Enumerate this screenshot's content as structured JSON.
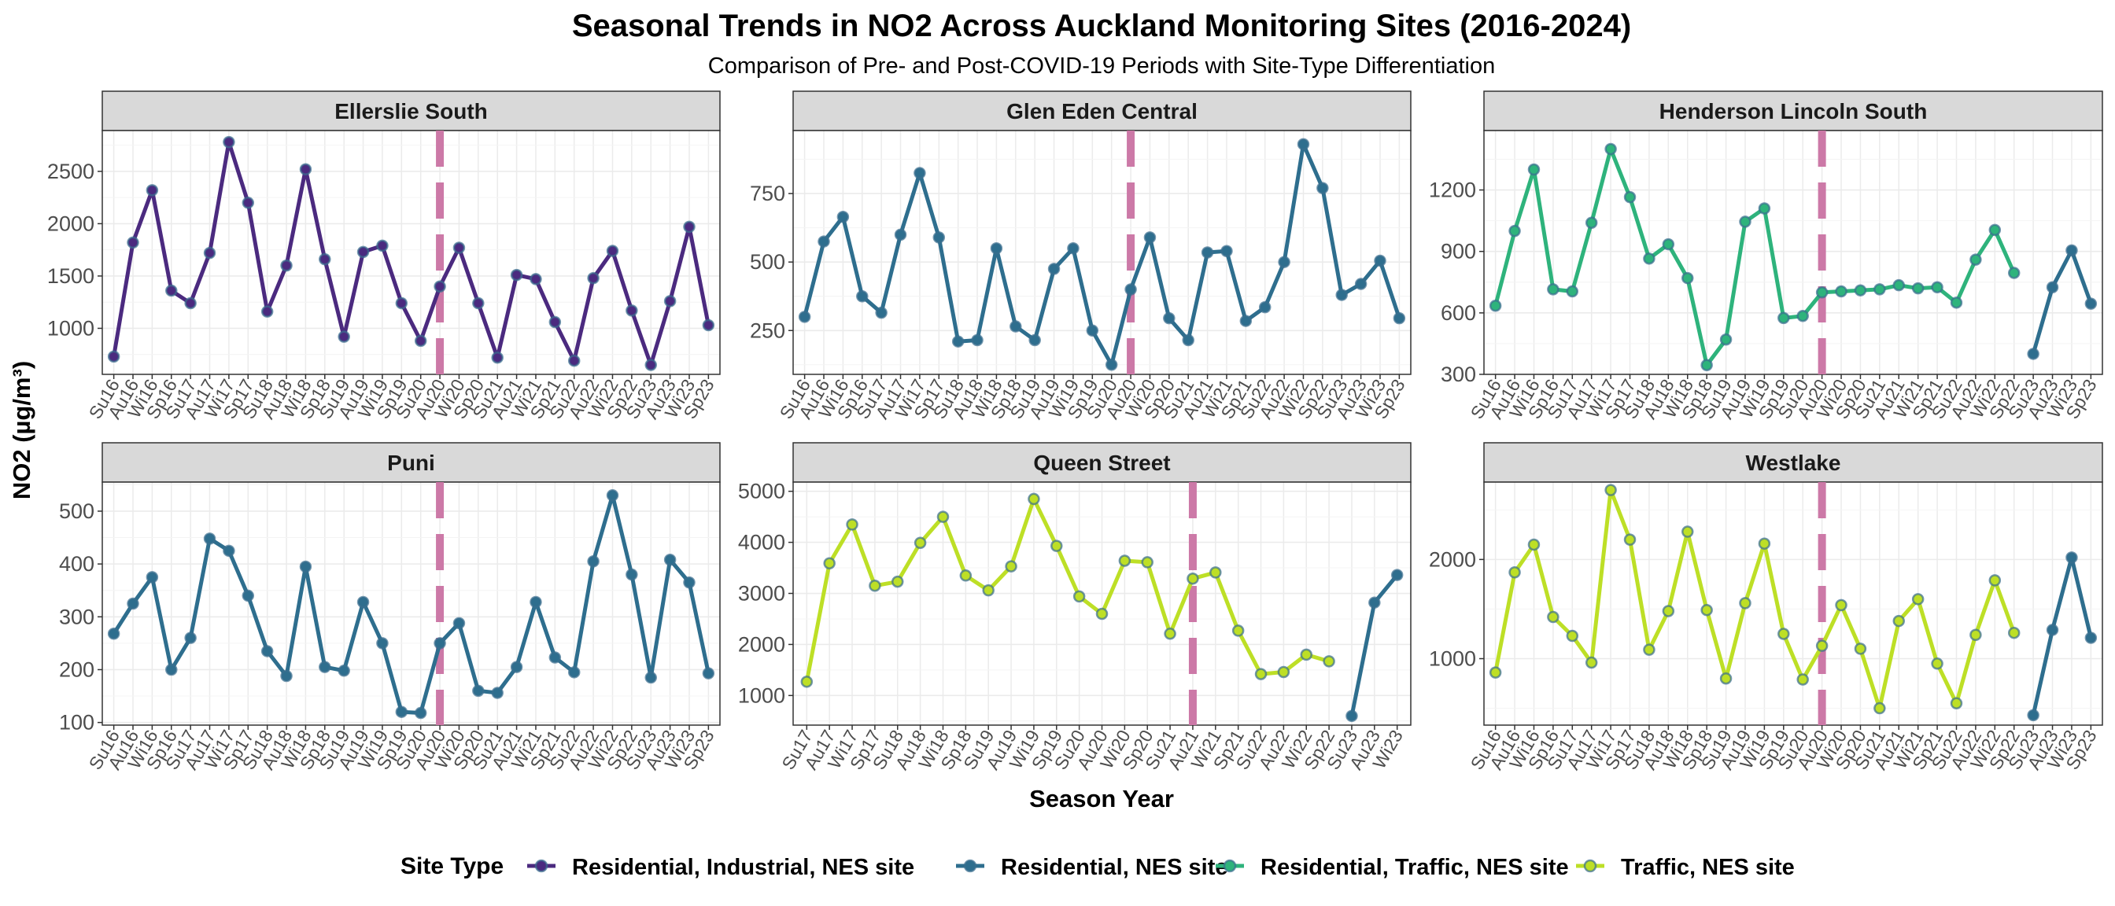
{
  "title": "Seasonal Trends in  NO2  Across Auckland Monitoring Sites (2016-2024)",
  "subtitle": "Comparison of Pre- and Post-COVID-19 Periods with Site-Type Differentiation",
  "xlabel": "Season Year",
  "ylabel": "NO2 (µg/m³)",
  "legend": {
    "title": "Site Type",
    "items": [
      {
        "label": "Residential, Industrial, NES site",
        "color": "#4b2a7f"
      },
      {
        "label": "Residential, NES site",
        "color": "#2e6e8e"
      },
      {
        "label": "Residential, Traffic, NES site",
        "color": "#2eb37c"
      },
      {
        "label": "Traffic, NES site",
        "color": "#bddf26"
      }
    ]
  },
  "covid_line_color": "#cc79a7",
  "chart_data": [
    {
      "type": "line",
      "title": "Ellerslie South",
      "ylim": [
        560,
        2890
      ],
      "yticks": [
        1000,
        1500,
        2000,
        2500
      ],
      "x_labels": [
        "Su16",
        "Au16",
        "Wi16",
        "Sp16",
        "Su17",
        "Au17",
        "Wi17",
        "Sp17",
        "Su18",
        "Au18",
        "Wi18",
        "Sp18",
        "Su19",
        "Au19",
        "Wi19",
        "Sp19",
        "Su20",
        "Au20",
        "Wi20",
        "Sp20",
        "Su21",
        "Au21",
        "Wi21",
        "Sp21",
        "Su22",
        "Au22",
        "Wi22",
        "Sp22",
        "Su23",
        "Au23",
        "Wi23",
        "Sp23"
      ],
      "covid_x": "Au20",
      "series": [
        {
          "site_type": "Residential, Industrial, NES site",
          "values": [
            730,
            1820,
            2320,
            1360,
            1240,
            1720,
            2780,
            2200,
            1160,
            1600,
            2520,
            1660,
            920,
            1730,
            1790,
            1240,
            880,
            1400,
            1770,
            1240,
            720,
            1510,
            1470,
            1060,
            690,
            1480,
            1740,
            1170,
            650,
            1260,
            1970,
            1030
          ]
        }
      ]
    },
    {
      "type": "line",
      "title": "Glen Eden Central",
      "ylim": [
        90,
        980
      ],
      "yticks": [
        250,
        500,
        750
      ],
      "x_labels": [
        "Su16",
        "Au16",
        "Wi16",
        "Sp16",
        "Su17",
        "Au17",
        "Wi17",
        "Sp17",
        "Su18",
        "Au18",
        "Wi18",
        "Sp18",
        "Su19",
        "Au19",
        "Wi19",
        "Sp19",
        "Su20",
        "Au20",
        "Wi20",
        "Sp20",
        "Su21",
        "Au21",
        "Wi21",
        "Sp21",
        "Su22",
        "Au22",
        "Wi22",
        "Sp22",
        "Su23",
        "Au23",
        "Wi23",
        "Sp23"
      ],
      "covid_x": "Au20",
      "series": [
        {
          "site_type": "Residential, NES site",
          "values": [
            300,
            575,
            665,
            375,
            315,
            600,
            825,
            590,
            210,
            215,
            550,
            265,
            215,
            475,
            550,
            250,
            125,
            400,
            590,
            295,
            215,
            535,
            540,
            285,
            335,
            500,
            930,
            770,
            380,
            420,
            505,
            295
          ]
        }
      ]
    },
    {
      "type": "line",
      "title": "Henderson Lincoln South",
      "ylim": [
        300,
        1490
      ],
      "yticks": [
        300,
        600,
        900,
        1200
      ],
      "x_labels": [
        "Su16",
        "Au16",
        "Wi16",
        "Sp16",
        "Su17",
        "Au17",
        "Wi17",
        "Sp17",
        "Su18",
        "Au18",
        "Wi18",
        "Sp18",
        "Su19",
        "Au19",
        "Wi19",
        "Sp19",
        "Su20",
        "Au20",
        "Wi20",
        "Sp20",
        "Su21",
        "Au21",
        "Wi21",
        "Sp21",
        "Su22",
        "Au22",
        "Wi22",
        "Sp22",
        "Su23",
        "Au23",
        "Wi23",
        "Sp23"
      ],
      "covid_x": "Au20",
      "series": [
        {
          "site_type": "Residential, Traffic, NES site",
          "values": [
            635,
            1000,
            1300,
            715,
            705,
            1040,
            1400,
            1165,
            865,
            935,
            770,
            345,
            470,
            1045,
            1110,
            575,
            585,
            700,
            705,
            710,
            715,
            735,
            720,
            725,
            650,
            860,
            1005,
            795,
            null,
            null,
            null,
            null
          ]
        },
        {
          "site_type": "Residential, NES site",
          "values": [
            null,
            null,
            null,
            null,
            null,
            null,
            null,
            null,
            null,
            null,
            null,
            null,
            null,
            null,
            null,
            null,
            null,
            null,
            null,
            null,
            null,
            null,
            null,
            null,
            null,
            null,
            null,
            null,
            400,
            725,
            905,
            645
          ]
        }
      ]
    },
    {
      "type": "line",
      "title": "Puni",
      "ylim": [
        95,
        555
      ],
      "yticks": [
        100,
        200,
        300,
        400,
        500
      ],
      "x_labels": [
        "Su16",
        "Au16",
        "Wi16",
        "Sp16",
        "Su17",
        "Au17",
        "Wi17",
        "Sp17",
        "Su18",
        "Au18",
        "Wi18",
        "Sp18",
        "Su19",
        "Au19",
        "Wi19",
        "Sp19",
        "Su20",
        "Au20",
        "Wi20",
        "Sp20",
        "Su21",
        "Au21",
        "Wi21",
        "Sp21",
        "Su22",
        "Au22",
        "Wi22",
        "Sp22",
        "Su23",
        "Au23",
        "Wi23",
        "Sp23"
      ],
      "covid_x": "Au20",
      "series": [
        {
          "site_type": "Residential, NES site",
          "values": [
            268,
            325,
            375,
            200,
            260,
            448,
            425,
            340,
            235,
            188,
            395,
            205,
            198,
            328,
            250,
            120,
            118,
            250,
            288,
            160,
            156,
            205,
            328,
            223,
            195,
            405,
            530,
            380,
            185,
            408,
            365,
            193
          ]
        }
      ]
    },
    {
      "type": "line",
      "title": "Queen Street",
      "ylim": [
        420,
        5180
      ],
      "yticks": [
        1000,
        2000,
        3000,
        4000,
        5000
      ],
      "x_labels": [
        "Su17",
        "Au17",
        "Wi17",
        "Sp17",
        "Su18",
        "Au18",
        "Wi18",
        "Sp18",
        "Su19",
        "Au19",
        "Wi19",
        "Sp19",
        "Su20",
        "Au20",
        "Wi20",
        "Sp20",
        "Su21",
        "Au21",
        "Wi21",
        "Sp21",
        "Su22",
        "Au22",
        "Wi22",
        "Sp22",
        "Su23",
        "Au23",
        "Wi23"
      ],
      "covid_x": "Au21",
      "series": [
        {
          "site_type": "Traffic, NES site",
          "values": [
            1270,
            3590,
            4350,
            3150,
            3230,
            3990,
            4500,
            3350,
            3060,
            3530,
            4850,
            3930,
            2940,
            2600,
            3640,
            3610,
            2210,
            3290,
            3410,
            2270,
            1420,
            1460,
            1800,
            1670,
            null,
            null,
            null
          ]
        },
        {
          "site_type": "Residential, NES site",
          "values": [
            null,
            null,
            null,
            null,
            null,
            null,
            null,
            null,
            null,
            null,
            null,
            null,
            null,
            null,
            null,
            null,
            null,
            null,
            null,
            null,
            null,
            null,
            null,
            null,
            600,
            2820,
            3360
          ]
        }
      ]
    },
    {
      "type": "line",
      "title": "Westlake",
      "ylim": [
        330,
        2780
      ],
      "yticks": [
        1000,
        2000
      ],
      "x_labels": [
        "Su16",
        "Au16",
        "Wi16",
        "Sp16",
        "Su17",
        "Au17",
        "Wi17",
        "Sp17",
        "Su18",
        "Au18",
        "Wi18",
        "Sp18",
        "Su19",
        "Au19",
        "Wi19",
        "Sp19",
        "Su20",
        "Au20",
        "Wi20",
        "Sp20",
        "Su21",
        "Au21",
        "Wi21",
        "Sp21",
        "Su22",
        "Au22",
        "Wi22",
        "Sp22",
        "Su23",
        "Au23",
        "Wi23",
        "Sp23"
      ],
      "covid_x": "Au20",
      "series": [
        {
          "site_type": "Traffic, NES site",
          "values": [
            860,
            1870,
            2150,
            1420,
            1230,
            960,
            2700,
            2200,
            1090,
            1480,
            2280,
            1490,
            800,
            1560,
            2160,
            1250,
            790,
            1130,
            1540,
            1100,
            500,
            1380,
            1600,
            950,
            550,
            1240,
            1790,
            1260,
            null,
            null,
            null,
            null
          ]
        },
        {
          "site_type": "Residential, NES site",
          "values": [
            null,
            null,
            null,
            null,
            null,
            null,
            null,
            null,
            null,
            null,
            null,
            null,
            null,
            null,
            null,
            null,
            null,
            null,
            null,
            null,
            null,
            null,
            null,
            null,
            null,
            null,
            null,
            null,
            430,
            1290,
            2020,
            1210
          ]
        }
      ]
    }
  ]
}
